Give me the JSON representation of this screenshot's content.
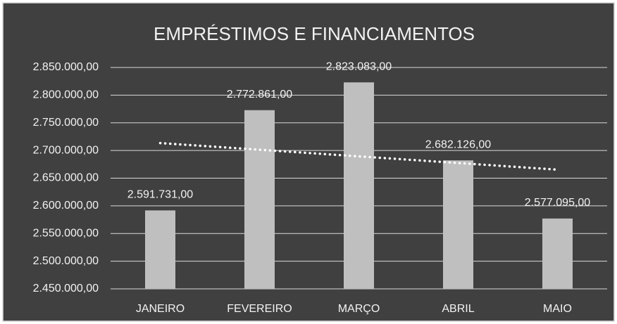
{
  "chart_data": {
    "type": "bar",
    "title": "EMPRÉSTIMOS E FINANCIAMENTOS",
    "categories": [
      "JANEIRO",
      "FEVEREIRO",
      "MARÇO",
      "ABRIL",
      "MAIO"
    ],
    "values": [
      2591731,
      2772861,
      2823083,
      2682126,
      2577095
    ],
    "value_labels": [
      "2.591.731,00",
      "2.772.861,00",
      "2.823.083,00",
      "2.682.126,00",
      "2.577.095,00"
    ],
    "color": "#bfbfbf",
    "ylim": [
      2450000,
      2850000
    ],
    "yticks": [
      {
        "value": 2450000,
        "label": "2.450.000,00"
      },
      {
        "value": 2500000,
        "label": "2.500.000,00"
      },
      {
        "value": 2550000,
        "label": "2.550.000,00"
      },
      {
        "value": 2600000,
        "label": "2.600.000,00"
      },
      {
        "value": 2650000,
        "label": "2.650.000,00"
      },
      {
        "value": 2700000,
        "label": "2.700.000,00"
      },
      {
        "value": 2750000,
        "label": "2.750.000,00"
      },
      {
        "value": 2800000,
        "label": "2.800.000,00"
      },
      {
        "value": 2850000,
        "label": "2.850.000,00"
      }
    ],
    "grid": true,
    "trendline": "linear"
  }
}
